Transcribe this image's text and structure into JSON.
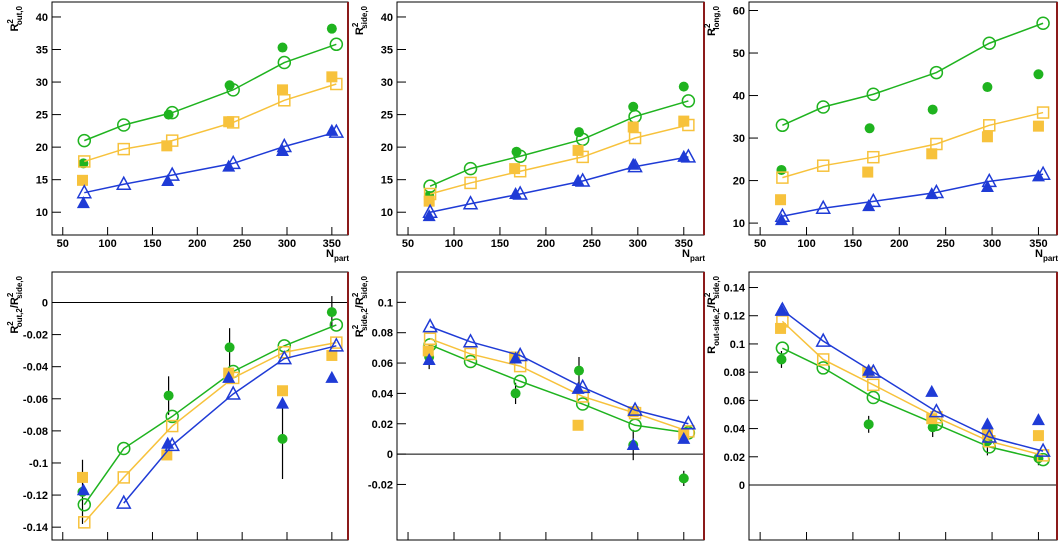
{
  "chart_data": [
    {
      "type": "scatter",
      "ylabel": [
        {
          "text": "R",
          "style": "normal"
        },
        {
          "text": "2",
          "style": "sup"
        },
        {
          "text": "out,0",
          "style": "sub"
        }
      ],
      "xlabel": [
        {
          "text": "N",
          "style": "normal"
        },
        {
          "text": "part",
          "style": "sub"
        }
      ],
      "xlim": [
        38,
        368
      ],
      "xticks": [
        50,
        100,
        150,
        200,
        250,
        300,
        350
      ],
      "ylim": [
        6.5,
        42.3
      ],
      "yticks": [
        10,
        15,
        20,
        25,
        30,
        35,
        40
      ],
      "series": [
        {
          "color": "#1fb31f",
          "marker": "circle",
          "filled": true,
          "x": [
            73,
            168,
            236,
            295,
            350
          ],
          "values": [
            17.5,
            25,
            29.5,
            35.3,
            38.2
          ]
        },
        {
          "color": "#1fb31f",
          "marker": "circle",
          "filled": false,
          "line": true,
          "x": [
            74,
            118,
            172,
            240,
            297,
            355
          ],
          "values": [
            21,
            23.4,
            25.3,
            28.8,
            33,
            35.8
          ]
        },
        {
          "color": "#f7c23c",
          "marker": "square",
          "filled": true,
          "x": [
            72,
            166,
            235,
            295,
            350
          ],
          "values": [
            14.9,
            20.2,
            23.9,
            28.8,
            30.8
          ]
        },
        {
          "color": "#f7c23c",
          "marker": "square",
          "filled": false,
          "line": true,
          "x": [
            74,
            118,
            172,
            240,
            297,
            355
          ],
          "values": [
            17.8,
            19.7,
            21,
            23.8,
            27.2,
            29.7
          ]
        },
        {
          "color": "#1f3bd6",
          "marker": "triangle",
          "filled": true,
          "x": [
            73,
            167,
            235,
            295,
            350
          ],
          "values": [
            11.4,
            14.8,
            17,
            19.4,
            22.5
          ]
        },
        {
          "color": "#1f3bd6",
          "marker": "triangle",
          "filled": false,
          "line": true,
          "x": [
            74,
            118,
            172,
            240,
            297,
            355
          ],
          "values": [
            13,
            14.3,
            15.7,
            17.5,
            20.1,
            22.3
          ]
        }
      ]
    },
    {
      "type": "scatter",
      "ylabel": [
        {
          "text": "R",
          "style": "normal"
        },
        {
          "text": "2",
          "style": "sup"
        },
        {
          "text": "side,0",
          "style": "sub"
        }
      ],
      "xlabel": [
        {
          "text": "N",
          "style": "normal"
        },
        {
          "text": "part",
          "style": "sub"
        }
      ],
      "xlim": [
        38,
        372
      ],
      "xticks": [
        50,
        100,
        150,
        200,
        250,
        300,
        350
      ],
      "ylim": [
        6.5,
        42.3
      ],
      "yticks": [
        10,
        15,
        20,
        25,
        30,
        35,
        40
      ],
      "series": [
        {
          "color": "#1fb31f",
          "marker": "circle",
          "filled": true,
          "x": [
            73,
            168,
            236,
            295,
            350
          ],
          "values": [
            12.5,
            19.3,
            22.3,
            26.2,
            29.3
          ]
        },
        {
          "color": "#1fb31f",
          "marker": "circle",
          "filled": false,
          "line": true,
          "x": [
            74,
            118,
            172,
            240,
            297,
            355
          ],
          "values": [
            14,
            16.7,
            18.6,
            21.2,
            24.7,
            27.1
          ]
        },
        {
          "color": "#f7c23c",
          "marker": "square",
          "filled": true,
          "x": [
            73,
            166,
            235,
            295,
            350
          ],
          "values": [
            11.7,
            16.7,
            19.5,
            23.1,
            24
          ]
        },
        {
          "color": "#f7c23c",
          "marker": "square",
          "filled": false,
          "line": true,
          "x": [
            74,
            118,
            172,
            240,
            297,
            355
          ],
          "values": [
            12.8,
            14.5,
            16.3,
            18.5,
            21.4,
            23.4
          ]
        },
        {
          "color": "#1f3bd6",
          "marker": "triangle",
          "filled": true,
          "x": [
            73,
            167,
            235,
            295,
            350
          ],
          "values": [
            9.4,
            12.8,
            14.8,
            17.3,
            18.5
          ]
        },
        {
          "color": "#1f3bd6",
          "marker": "triangle",
          "filled": false,
          "line": true,
          "x": [
            74,
            118,
            172,
            240,
            297,
            355
          ],
          "values": [
            10,
            11.3,
            12.8,
            14.8,
            17,
            18.5
          ]
        }
      ]
    },
    {
      "type": "scatter",
      "ylabel": [
        {
          "text": "R",
          "style": "normal"
        },
        {
          "text": "2",
          "style": "sup"
        },
        {
          "text": "long,0",
          "style": "sub"
        }
      ],
      "xlabel": [
        {
          "text": "N",
          "style": "normal"
        },
        {
          "text": "part",
          "style": "sub"
        }
      ],
      "xlim": [
        38,
        370
      ],
      "xticks": [
        50,
        100,
        150,
        200,
        250,
        300,
        350
      ],
      "ylim": [
        7.2,
        62
      ],
      "yticks": [
        10,
        20,
        30,
        40,
        50,
        60
      ],
      "series": [
        {
          "color": "#1fb31f",
          "marker": "circle",
          "filled": true,
          "x": [
            73,
            168,
            236,
            295,
            350
          ],
          "values": [
            22.5,
            32.3,
            36.7,
            42,
            45
          ]
        },
        {
          "color": "#1fb31f",
          "marker": "circle",
          "filled": false,
          "line": true,
          "x": [
            74,
            118,
            172,
            240,
            297,
            355
          ],
          "values": [
            33,
            37.3,
            40.3,
            45.4,
            52.3,
            57
          ]
        },
        {
          "color": "#f7c23c",
          "marker": "square",
          "filled": true,
          "x": [
            72,
            166,
            235,
            295,
            350
          ],
          "values": [
            15.5,
            22,
            26.3,
            30.3,
            32.8
          ]
        },
        {
          "color": "#f7c23c",
          "marker": "square",
          "filled": false,
          "line": true,
          "x": [
            74,
            118,
            172,
            240,
            297,
            355
          ],
          "values": [
            20.7,
            23.5,
            25.5,
            28.6,
            33,
            36
          ]
        },
        {
          "color": "#1f3bd6",
          "marker": "triangle",
          "filled": true,
          "x": [
            73,
            167,
            235,
            295,
            350
          ],
          "values": [
            10.7,
            14,
            16.8,
            18.5,
            21
          ]
        },
        {
          "color": "#1f3bd6",
          "marker": "triangle",
          "filled": false,
          "line": true,
          "x": [
            74,
            118,
            172,
            240,
            297,
            355
          ],
          "values": [
            11.6,
            13.5,
            15.1,
            17.2,
            19.8,
            21.5
          ]
        }
      ]
    },
    {
      "type": "scatter",
      "zero_line": true,
      "ylabel": [
        {
          "text": "R",
          "style": "normal"
        },
        {
          "text": "2",
          "style": "sup"
        },
        {
          "text": "out,2",
          "style": "sub"
        },
        {
          "text": "/R",
          "style": "normal"
        },
        {
          "text": "2",
          "style": "sup"
        },
        {
          "text": "side,0",
          "style": "sub"
        }
      ],
      "xlabel": [
        {
          "text": "N",
          "style": "normal"
        },
        {
          "text": "part",
          "style": "sub"
        }
      ],
      "xlim": [
        38,
        368
      ],
      "xticks": [
        50,
        100,
        150,
        200,
        250,
        300,
        350
      ],
      "ylim": [
        -0.148,
        0.019
      ],
      "yticks": [
        0,
        -0.02,
        -0.04,
        -0.06,
        -0.08,
        -0.1,
        -0.12,
        -0.14
      ],
      "series": [
        {
          "color": "#1fb31f",
          "marker": "circle",
          "filled": true,
          "x": [
            72,
            168,
            236,
            295,
            350
          ],
          "values": [
            -0.118,
            -0.058,
            -0.028,
            -0.085,
            -0.006
          ],
          "errors": [
            0.02,
            0.012,
            0.012,
            0.025,
            0.01
          ]
        },
        {
          "color": "#1fb31f",
          "marker": "circle",
          "filled": false,
          "line": true,
          "x": [
            74,
            118,
            172,
            240,
            297,
            355
          ],
          "values": [
            -0.126,
            -0.091,
            -0.071,
            -0.043,
            -0.027,
            -0.014
          ]
        },
        {
          "color": "#f7c23c",
          "marker": "square",
          "filled": true,
          "x": [
            72,
            166,
            235,
            295,
            350
          ],
          "values": [
            -0.109,
            -0.095,
            -0.044,
            -0.055,
            -0.033
          ]
        },
        {
          "color": "#f7c23c",
          "marker": "square",
          "filled": false,
          "line": true,
          "x": [
            74,
            118,
            172,
            240,
            297,
            355
          ],
          "values": [
            -0.137,
            -0.109,
            -0.077,
            -0.047,
            -0.031,
            -0.025
          ]
        },
        {
          "color": "#1f3bd6",
          "marker": "triangle",
          "filled": true,
          "x": [
            73,
            167,
            235,
            295,
            350
          ],
          "values": [
            -0.117,
            -0.088,
            -0.047,
            -0.063,
            -0.047
          ]
        },
        {
          "color": "#1f3bd6",
          "marker": "triangle",
          "filled": false,
          "line": true,
          "x": [
            118,
            172,
            240,
            297,
            355
          ],
          "values": [
            -0.125,
            -0.089,
            -0.057,
            -0.035,
            -0.027
          ]
        }
      ]
    },
    {
      "type": "scatter",
      "zero_line": true,
      "ylabel": [
        {
          "text": "R",
          "style": "normal"
        },
        {
          "text": "2",
          "style": "sup"
        },
        {
          "text": "side,2",
          "style": "sub"
        },
        {
          "text": "/R",
          "style": "normal"
        },
        {
          "text": "2",
          "style": "sup"
        },
        {
          "text": "side,0",
          "style": "sub"
        }
      ],
      "xlabel": [
        {
          "text": "N",
          "style": "normal"
        },
        {
          "text": "part",
          "style": "sub"
        }
      ],
      "xlim": [
        38,
        372
      ],
      "xticks": [
        50,
        100,
        150,
        200,
        250,
        300,
        350
      ],
      "ylim": [
        -0.0566,
        0.12
      ],
      "yticks": [
        -0.02,
        0,
        0.02,
        0.04,
        0.06,
        0.08,
        0.1
      ],
      "series": [
        {
          "color": "#1fb31f",
          "marker": "circle",
          "filled": true,
          "x": [
            73,
            167,
            236,
            295,
            350
          ],
          "values": [
            0.064,
            0.04,
            0.055,
            0.006,
            -0.016
          ],
          "errors": [
            0.008,
            0.007,
            0.009,
            0.01,
            0.005
          ]
        },
        {
          "color": "#1fb31f",
          "marker": "circle",
          "filled": false,
          "line": true,
          "x": [
            74,
            118,
            172,
            240,
            297,
            355
          ],
          "values": [
            0.072,
            0.061,
            0.048,
            0.033,
            0.019,
            0.014
          ]
        },
        {
          "color": "#f7c23c",
          "marker": "square",
          "filled": true,
          "x": [
            72,
            166,
            235,
            295,
            350
          ],
          "values": [
            0.068,
            0.064,
            0.019,
            0.028,
            0.013
          ]
        },
        {
          "color": "#f7c23c",
          "marker": "square",
          "filled": false,
          "line": true,
          "x": [
            74,
            118,
            172,
            240,
            297,
            355
          ],
          "values": [
            0.076,
            0.066,
            0.058,
            0.038,
            0.027,
            0.015
          ]
        },
        {
          "color": "#1f3bd6",
          "marker": "triangle",
          "filled": true,
          "x": [
            73,
            167,
            235,
            295,
            350
          ],
          "values": [
            0.062,
            0.063,
            0.043,
            0.006,
            0.01
          ]
        },
        {
          "color": "#1f3bd6",
          "marker": "triangle",
          "filled": false,
          "line": true,
          "x": [
            74,
            118,
            172,
            240,
            297,
            355
          ],
          "values": [
            0.084,
            0.074,
            0.065,
            0.044,
            0.029,
            0.02
          ]
        }
      ]
    },
    {
      "type": "scatter",
      "zero_line": true,
      "ylabel": [
        {
          "text": "R",
          "style": "normal"
        },
        {
          "text": "out-side,2",
          "style": "sub"
        },
        {
          "text": "/R",
          "style": "normal"
        },
        {
          "text": "2",
          "style": "sup"
        },
        {
          "text": "side,0",
          "style": "sub"
        }
      ],
      "xlabel": [
        {
          "text": "N",
          "style": "normal"
        },
        {
          "text": "part",
          "style": "sub"
        }
      ],
      "xlim": [
        38,
        370
      ],
      "xticks": [
        50,
        100,
        150,
        200,
        250,
        300,
        350
      ],
      "ylim": [
        -0.039,
        0.151
      ],
      "yticks": [
        0,
        0.02,
        0.04,
        0.06,
        0.08,
        0.1,
        0.12,
        0.14
      ],
      "series": [
        {
          "color": "#1fb31f",
          "marker": "circle",
          "filled": true,
          "x": [
            73,
            167,
            236,
            295,
            350
          ],
          "values": [
            0.089,
            0.043,
            0.041,
            0.031,
            0.019
          ],
          "errors": [
            0.006,
            0.006,
            0.007,
            0.01,
            0.005
          ]
        },
        {
          "color": "#1fb31f",
          "marker": "circle",
          "filled": false,
          "line": true,
          "x": [
            74,
            118,
            172,
            240,
            297,
            355
          ],
          "values": [
            0.097,
            0.083,
            0.062,
            0.043,
            0.027,
            0.018
          ]
        },
        {
          "color": "#f7c23c",
          "marker": "square",
          "filled": true,
          "x": [
            72,
            166,
            235,
            295,
            350
          ],
          "values": [
            0.111,
            0.08,
            0.047,
            0.036,
            0.035
          ]
        },
        {
          "color": "#f7c23c",
          "marker": "square",
          "filled": false,
          "line": true,
          "x": [
            74,
            118,
            172,
            240,
            297,
            355
          ],
          "values": [
            0.116,
            0.089,
            0.071,
            0.048,
            0.031,
            0.021
          ]
        },
        {
          "color": "#1f3bd6",
          "marker": "triangle",
          "filled": true,
          "x": [
            73,
            167,
            235,
            295,
            350
          ],
          "values": [
            0.124,
            0.081,
            0.066,
            0.043,
            0.046
          ]
        },
        {
          "color": "#1f3bd6",
          "marker": "triangle",
          "filled": false,
          "line": true,
          "x": [
            74,
            118,
            172,
            240,
            297,
            355
          ],
          "values": [
            0.124,
            0.102,
            0.08,
            0.052,
            0.034,
            0.024
          ]
        }
      ]
    }
  ]
}
